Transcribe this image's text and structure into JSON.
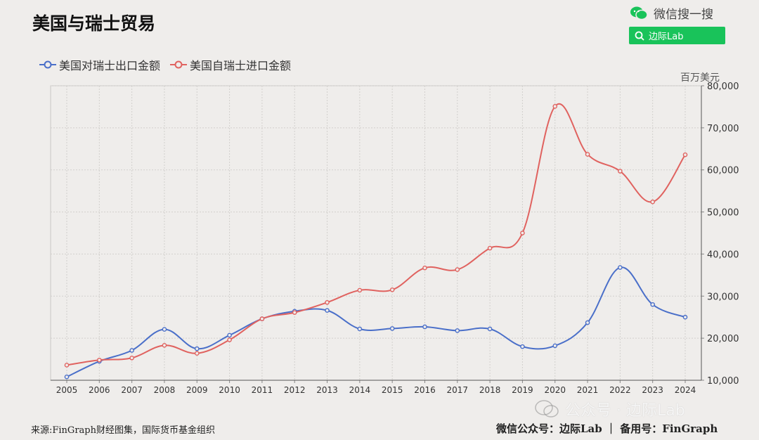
{
  "header": {
    "title": "美国与瑞士贸易",
    "brand_text": "微信搜一搜",
    "search_text": "边际Lab",
    "accent_color": "#19c35a"
  },
  "footer": {
    "source": "来源:FinGraph财经图集，国际货币基金组织",
    "right": "微信公众号：边际Lab ｜ 备用号：FinGraph",
    "watermark": "公众号 · 边际Lab"
  },
  "chart_data": {
    "type": "line",
    "title": "美国与瑞士贸易",
    "ylabel": "百万美元",
    "x": [
      "2005",
      "2006",
      "2007",
      "2008",
      "2009",
      "2010",
      "2011",
      "2012",
      "2013",
      "2014",
      "2015",
      "2016",
      "2017",
      "2018",
      "2019",
      "2020",
      "2021",
      "2022",
      "2023",
      "2024"
    ],
    "ylim": [
      10000,
      80000
    ],
    "yticks": [
      10000,
      20000,
      30000,
      40000,
      50000,
      60000,
      70000,
      80000
    ],
    "ytick_labels": [
      "10,000",
      "20,000",
      "30,000",
      "40,000",
      "50,000",
      "60,000",
      "70,000",
      "80,000"
    ],
    "y_axis_side": "right",
    "grid": true,
    "legend_position": "top-left",
    "series": [
      {
        "name": "美国对瑞士出口金额",
        "color": "#4a6fc9",
        "values": [
          10800,
          14500,
          17100,
          22100,
          17500,
          20700,
          24600,
          26400,
          26600,
          22200,
          22300,
          22700,
          21800,
          22200,
          18000,
          18200,
          23700,
          36800,
          28000,
          25000
        ]
      },
      {
        "name": "美国自瑞士进口金额",
        "color": "#e0625f",
        "values": [
          13600,
          14800,
          15300,
          18300,
          16400,
          19600,
          24600,
          26100,
          28500,
          31400,
          31500,
          36700,
          36300,
          41400,
          45000,
          75100,
          63700,
          59700,
          52400,
          63600
        ]
      }
    ]
  }
}
